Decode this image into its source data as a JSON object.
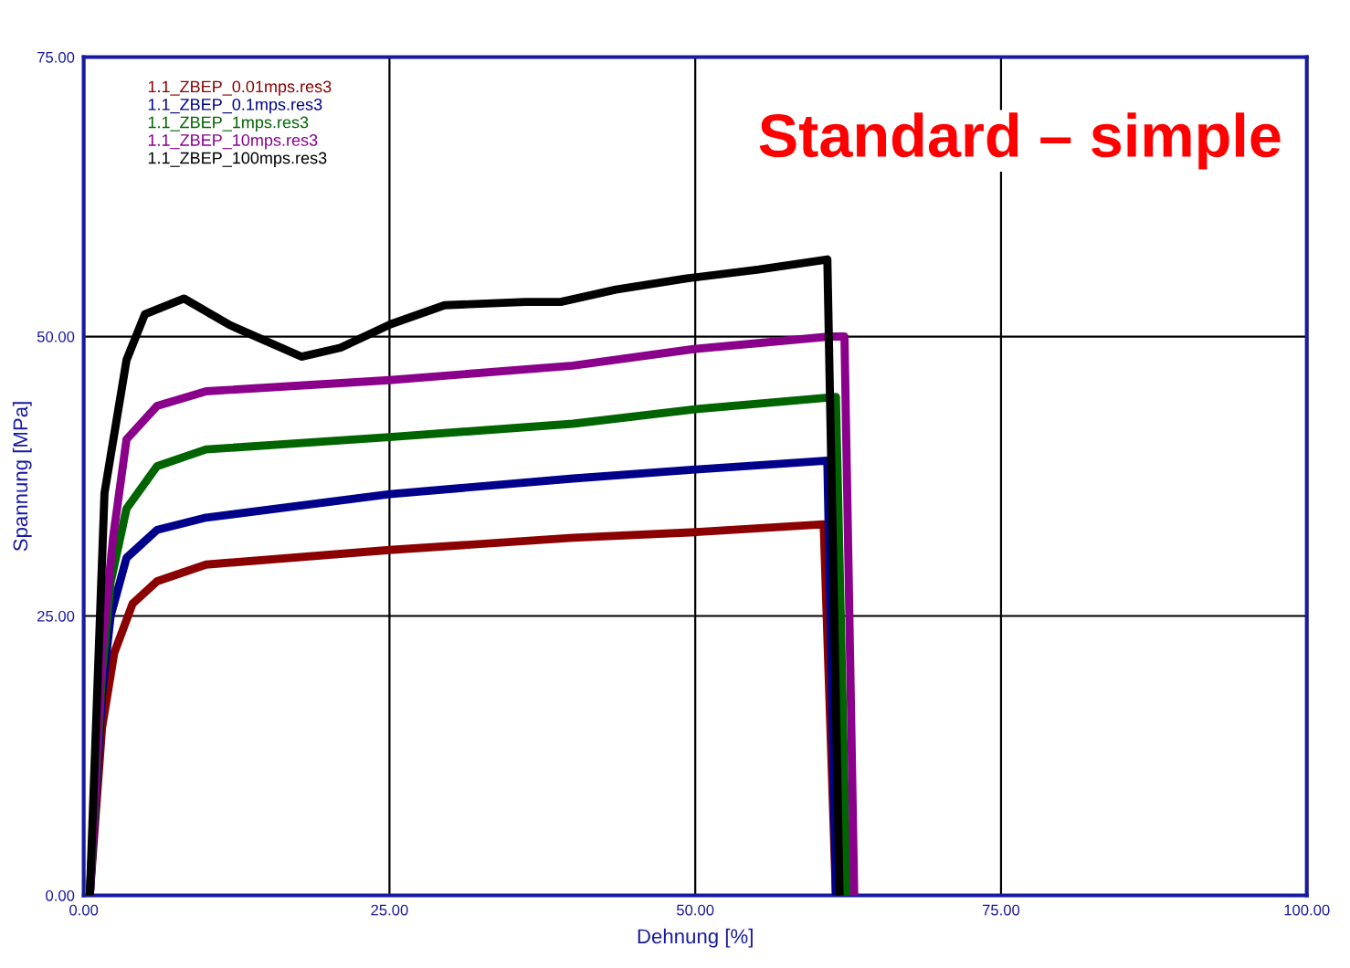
{
  "chart_data": {
    "type": "line",
    "xlabel": "Dehnung [%]",
    "ylabel": "Spannung [MPa]",
    "annotations": [
      "Standard – simple"
    ],
    "xlim": [
      0,
      100
    ],
    "ylim": [
      0,
      75
    ],
    "xticks": [
      {
        "value": 0,
        "label": "0.00"
      },
      {
        "value": 25,
        "label": "25.00"
      },
      {
        "value": 50,
        "label": "50.00"
      },
      {
        "value": 75,
        "label": "75.00"
      },
      {
        "value": 100,
        "label": "100.00"
      }
    ],
    "yticks": [
      {
        "value": 0,
        "label": "0.00"
      },
      {
        "value": 25,
        "label": "25.00"
      },
      {
        "value": 50,
        "label": "50.00"
      },
      {
        "value": 75,
        "label": "75.00"
      }
    ],
    "grid": true,
    "legend": "top left",
    "marker": "none",
    "line_style": "solid",
    "series": [
      {
        "name": "1.1_ZBEP_0.01mps.res3",
        "color": "#8b0000",
        "x": [
          0.5,
          1.5,
          2.5,
          4,
          6,
          10,
          25,
          40,
          50,
          60.5,
          61.5
        ],
        "values": [
          0,
          15,
          21.7,
          26.1,
          28.1,
          29.6,
          30.9,
          32.0,
          32.5,
          33.2,
          0
        ]
      },
      {
        "name": "1.1_ZBEP_0.1mps.res3",
        "color": "#00008b",
        "x": [
          0.5,
          1.5,
          2.2,
          3.5,
          6,
          10,
          25,
          40,
          50,
          60.8,
          61.5
        ],
        "values": [
          0,
          18,
          25,
          30.2,
          32.7,
          33.8,
          35.9,
          37.3,
          38.1,
          38.9,
          0
        ]
      },
      {
        "name": "1.1_ZBEP_1mps.res3",
        "color": "#006400",
        "x": [
          0.5,
          1.5,
          2.2,
          3.5,
          6,
          10,
          25,
          40,
          50,
          61.5,
          62.4
        ],
        "values": [
          0,
          20,
          28,
          34.6,
          38.4,
          39.9,
          41.0,
          42.2,
          43.5,
          44.6,
          0
        ]
      },
      {
        "name": "1.1_ZBEP_10mps.res3",
        "color": "#8b008b",
        "x": [
          0.5,
          1.5,
          2.4,
          3.5,
          6,
          10,
          25,
          40,
          50,
          61,
          62.2,
          63
        ],
        "values": [
          0,
          22,
          32,
          40.8,
          43.8,
          45.1,
          46.1,
          47.4,
          48.9,
          50.0,
          50.0,
          0
        ]
      },
      {
        "name": "1.1_ZBEP_100mps.res3",
        "color": "#000000",
        "x": [
          0.5,
          1.7,
          3.5,
          5,
          8.2,
          12,
          17.8,
          21,
          25.1,
          29.5,
          36.1,
          39,
          43.5,
          49.3,
          55.2,
          60.8,
          61.8
        ],
        "values": [
          0,
          36,
          47.9,
          52,
          53.4,
          51,
          48.2,
          49,
          51.1,
          52.8,
          53.1,
          53.1,
          54.2,
          55.2,
          56,
          56.9,
          0
        ]
      }
    ]
  }
}
